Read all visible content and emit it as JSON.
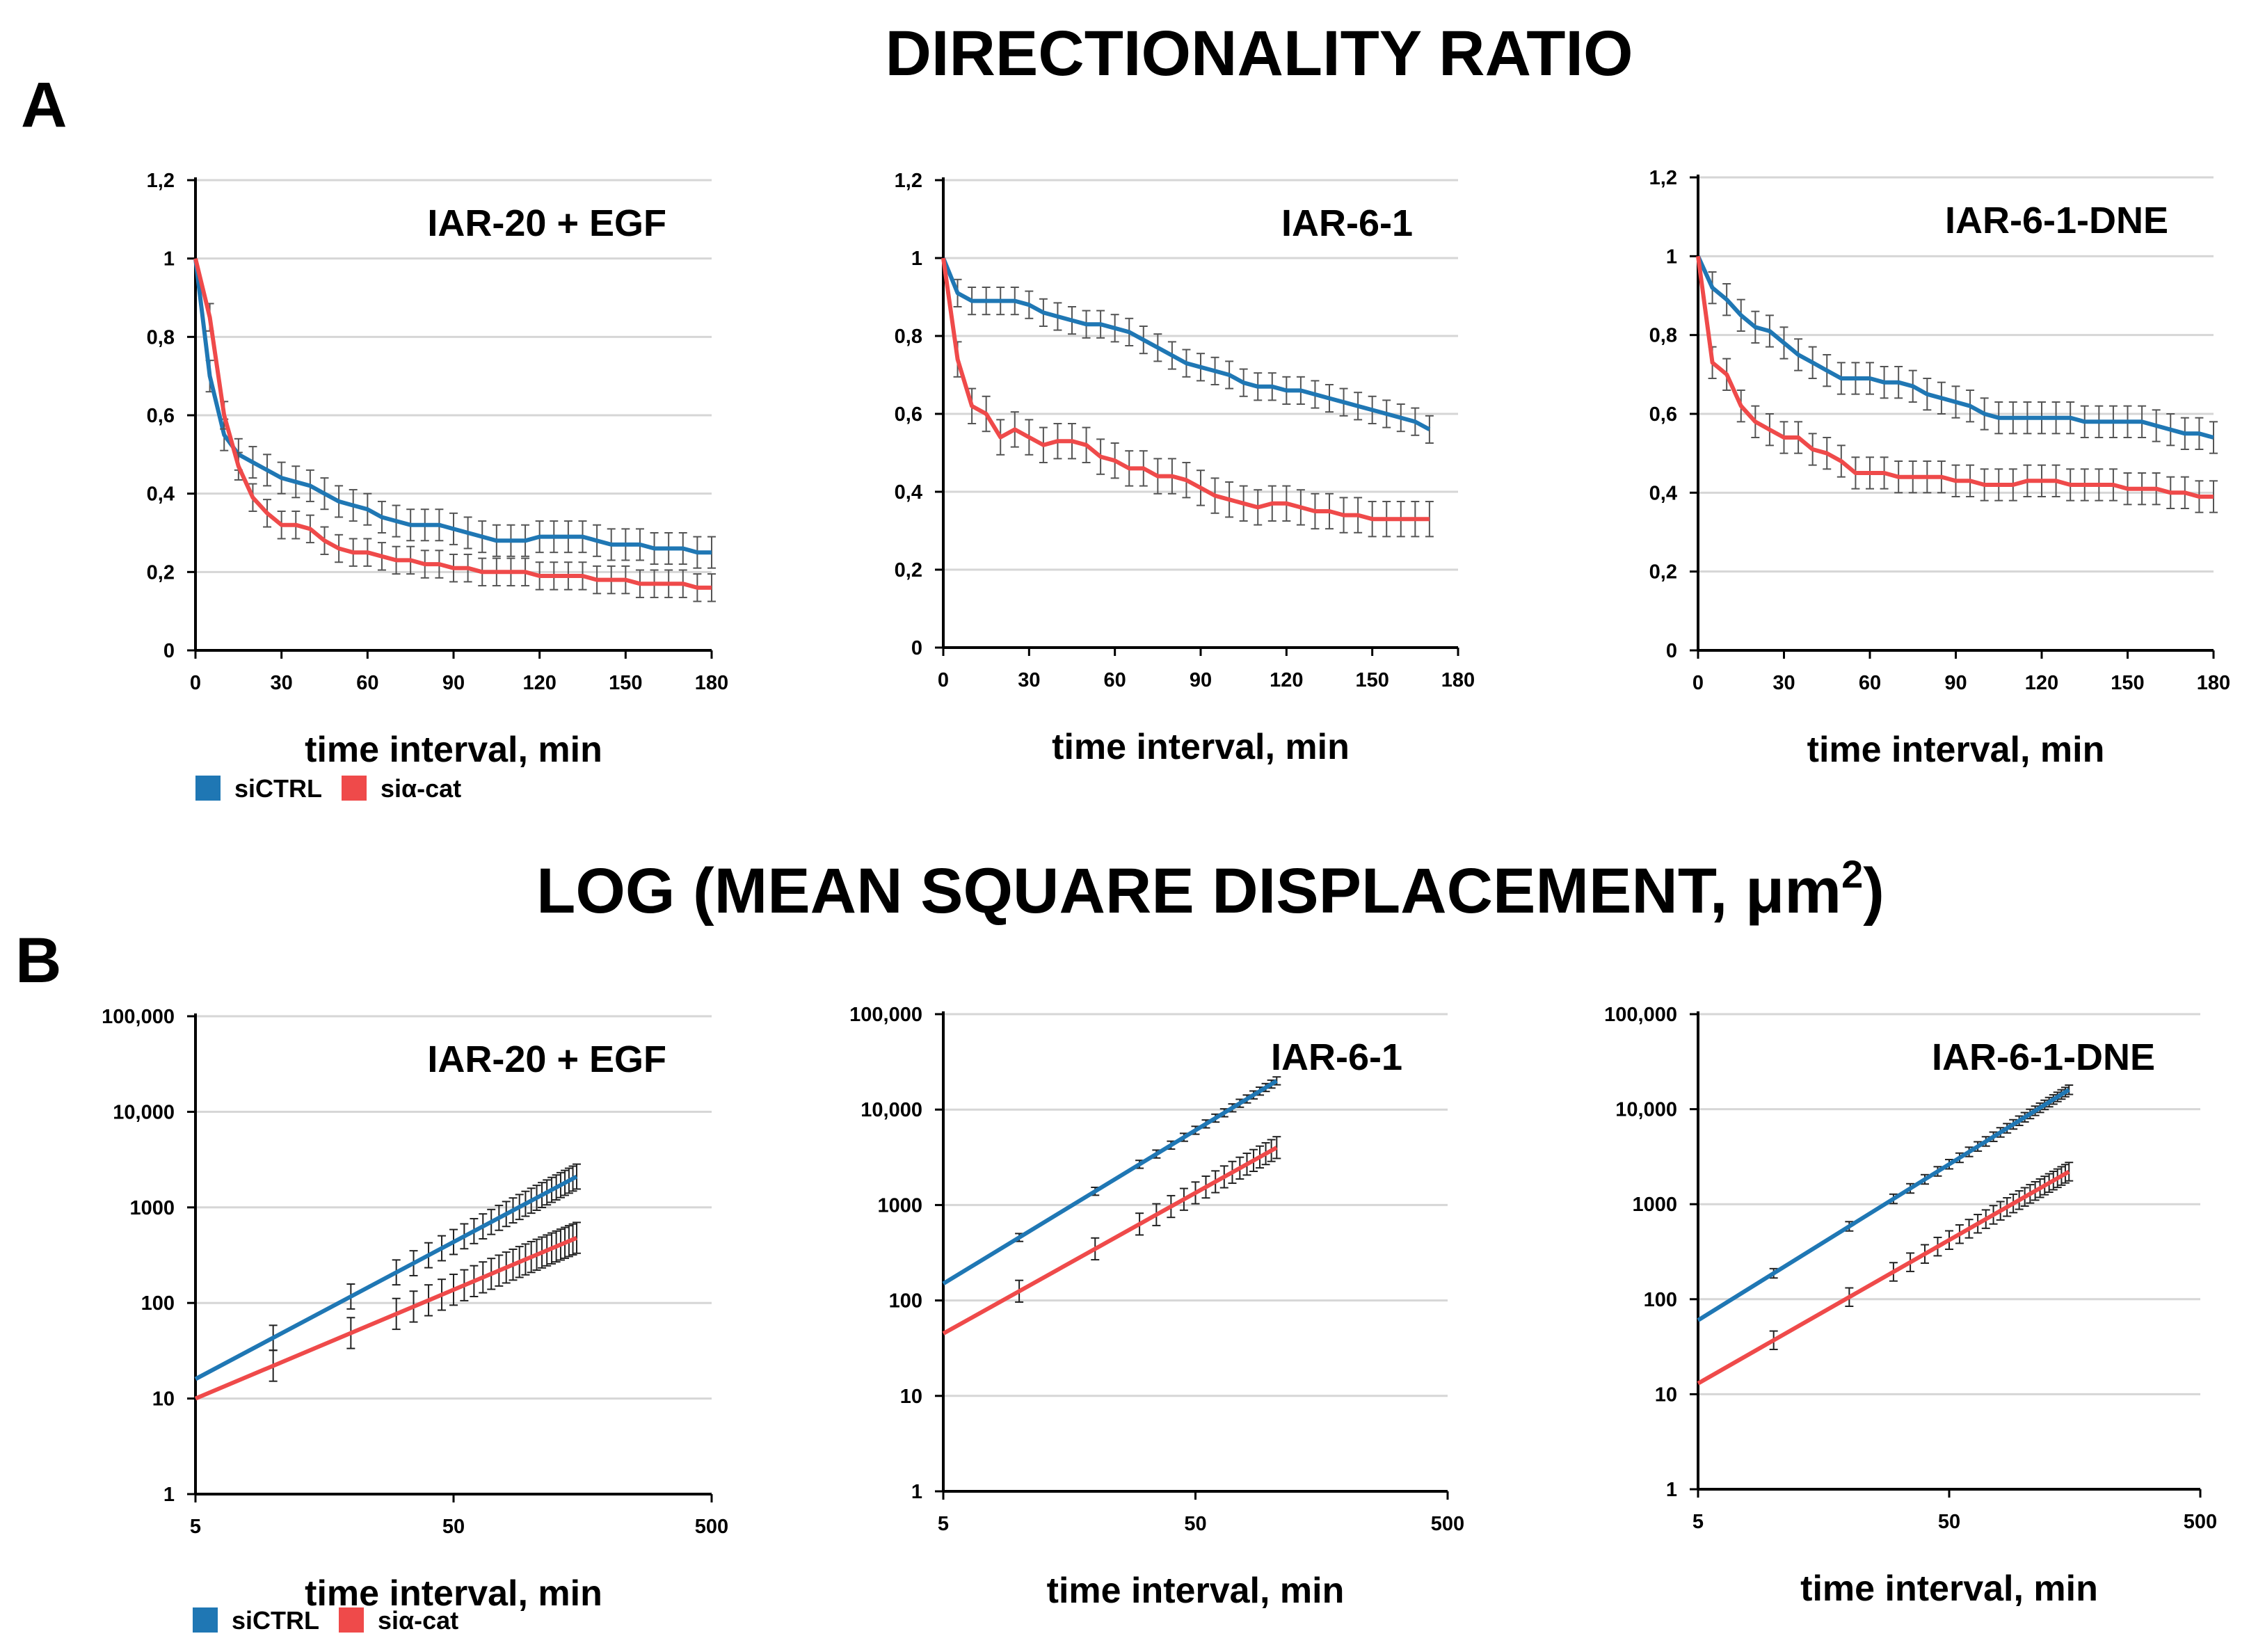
{
  "figure": {
    "title_a": "DIRECTIONALITY RATIO",
    "title_b_main": "LOG (MEAN SQUARE DISPLACEMENT, ",
    "title_b_unit": "μm",
    "title_b_sup": "2",
    "title_b_close": ")",
    "panel_a_letter": "A",
    "panel_b_letter": "B"
  },
  "colors": {
    "siCTRL": "#1f77b4",
    "sia_cat": "#ef4a4a",
    "errorbar": "#555555",
    "grid": "#d6d6d6"
  },
  "legend": [
    {
      "label": "siCTRL",
      "color": "#1f77b4"
    },
    {
      "label": "siα-cat",
      "color": "#ef4a4a"
    }
  ],
  "chart_data": [
    {
      "type": "line",
      "panel": "A",
      "title": "IAR-20 + EGF",
      "xlabel": "time interval, min",
      "ylabel": "",
      "xlim": [
        0,
        180
      ],
      "ylim": [
        0,
        1.2
      ],
      "xticks": [
        "0",
        "30",
        "60",
        "90",
        "120",
        "150",
        "180"
      ],
      "yticks": [
        "0",
        "0,2",
        "0,4",
        "0,6",
        "0,8",
        "1",
        "1,2"
      ],
      "series": [
        {
          "name": "siCTRL",
          "points": [
            [
              0,
              1
            ],
            [
              5,
              0.7
            ],
            [
              10,
              0.55
            ],
            [
              15,
              0.5
            ],
            [
              20,
              0.48
            ],
            [
              25,
              0.46
            ],
            [
              30,
              0.44
            ],
            [
              35,
              0.43
            ],
            [
              40,
              0.42
            ],
            [
              45,
              0.4
            ],
            [
              50,
              0.38
            ],
            [
              55,
              0.37
            ],
            [
              60,
              0.36
            ],
            [
              65,
              0.34
            ],
            [
              70,
              0.33
            ],
            [
              75,
              0.32
            ],
            [
              80,
              0.32
            ],
            [
              85,
              0.32
            ],
            [
              90,
              0.31
            ],
            [
              95,
              0.3
            ],
            [
              100,
              0.29
            ],
            [
              105,
              0.28
            ],
            [
              110,
              0.28
            ],
            [
              115,
              0.28
            ],
            [
              120,
              0.29
            ],
            [
              125,
              0.29
            ],
            [
              130,
              0.29
            ],
            [
              135,
              0.29
            ],
            [
              140,
              0.28
            ],
            [
              145,
              0.27
            ],
            [
              150,
              0.27
            ],
            [
              155,
              0.27
            ],
            [
              160,
              0.26
            ],
            [
              165,
              0.26
            ],
            [
              170,
              0.26
            ],
            [
              175,
              0.25
            ],
            [
              180,
              0.25
            ]
          ],
          "err": 0.04
        },
        {
          "name": "siα-cat",
          "points": [
            [
              0,
              1
            ],
            [
              5,
              0.85
            ],
            [
              10,
              0.6
            ],
            [
              15,
              0.47
            ],
            [
              20,
              0.39
            ],
            [
              25,
              0.35
            ],
            [
              30,
              0.32
            ],
            [
              35,
              0.32
            ],
            [
              40,
              0.31
            ],
            [
              45,
              0.28
            ],
            [
              50,
              0.26
            ],
            [
              55,
              0.25
            ],
            [
              60,
              0.25
            ],
            [
              65,
              0.24
            ],
            [
              70,
              0.23
            ],
            [
              75,
              0.23
            ],
            [
              80,
              0.22
            ],
            [
              85,
              0.22
            ],
            [
              90,
              0.21
            ],
            [
              95,
              0.21
            ],
            [
              100,
              0.2
            ],
            [
              105,
              0.2
            ],
            [
              110,
              0.2
            ],
            [
              115,
              0.2
            ],
            [
              120,
              0.19
            ],
            [
              125,
              0.19
            ],
            [
              130,
              0.19
            ],
            [
              135,
              0.19
            ],
            [
              140,
              0.18
            ],
            [
              145,
              0.18
            ],
            [
              150,
              0.18
            ],
            [
              155,
              0.17
            ],
            [
              160,
              0.17
            ],
            [
              165,
              0.17
            ],
            [
              170,
              0.17
            ],
            [
              175,
              0.16
            ],
            [
              180,
              0.16
            ]
          ],
          "err": 0.035
        }
      ]
    },
    {
      "type": "line",
      "panel": "A",
      "title": "IAR-6-1",
      "xlabel": "time interval, min",
      "ylabel": "",
      "xlim": [
        0,
        180
      ],
      "ylim": [
        0,
        1.2
      ],
      "xticks": [
        "0",
        "30",
        "60",
        "90",
        "120",
        "150",
        "180"
      ],
      "yticks": [
        "0",
        "0,2",
        "0,4",
        "0,6",
        "0,8",
        "1",
        "1,2"
      ],
      "series": [
        {
          "name": "siCTRL",
          "points": [
            [
              0,
              1
            ],
            [
              5,
              0.91
            ],
            [
              10,
              0.89
            ],
            [
              15,
              0.89
            ],
            [
              20,
              0.89
            ],
            [
              25,
              0.89
            ],
            [
              30,
              0.88
            ],
            [
              35,
              0.86
            ],
            [
              40,
              0.85
            ],
            [
              45,
              0.84
            ],
            [
              50,
              0.83
            ],
            [
              55,
              0.83
            ],
            [
              60,
              0.82
            ],
            [
              65,
              0.81
            ],
            [
              70,
              0.79
            ],
            [
              75,
              0.77
            ],
            [
              80,
              0.75
            ],
            [
              85,
              0.73
            ],
            [
              90,
              0.72
            ],
            [
              95,
              0.71
            ],
            [
              100,
              0.7
            ],
            [
              105,
              0.68
            ],
            [
              110,
              0.67
            ],
            [
              115,
              0.67
            ],
            [
              120,
              0.66
            ],
            [
              125,
              0.66
            ],
            [
              130,
              0.65
            ],
            [
              135,
              0.64
            ],
            [
              140,
              0.63
            ],
            [
              145,
              0.62
            ],
            [
              150,
              0.61
            ],
            [
              155,
              0.6
            ],
            [
              160,
              0.59
            ],
            [
              165,
              0.58
            ],
            [
              170,
              0.56
            ]
          ],
          "err": 0.035
        },
        {
          "name": "siα-cat",
          "points": [
            [
              0,
              1
            ],
            [
              5,
              0.74
            ],
            [
              10,
              0.62
            ],
            [
              15,
              0.6
            ],
            [
              20,
              0.54
            ],
            [
              25,
              0.56
            ],
            [
              30,
              0.54
            ],
            [
              35,
              0.52
            ],
            [
              40,
              0.53
            ],
            [
              45,
              0.53
            ],
            [
              50,
              0.52
            ],
            [
              55,
              0.49
            ],
            [
              60,
              0.48
            ],
            [
              65,
              0.46
            ],
            [
              70,
              0.46
            ],
            [
              75,
              0.44
            ],
            [
              80,
              0.44
            ],
            [
              85,
              0.43
            ],
            [
              90,
              0.41
            ],
            [
              95,
              0.39
            ],
            [
              100,
              0.38
            ],
            [
              105,
              0.37
            ],
            [
              110,
              0.36
            ],
            [
              115,
              0.37
            ],
            [
              120,
              0.37
            ],
            [
              125,
              0.36
            ],
            [
              130,
              0.35
            ],
            [
              135,
              0.35
            ],
            [
              140,
              0.34
            ],
            [
              145,
              0.34
            ],
            [
              150,
              0.33
            ],
            [
              155,
              0.33
            ],
            [
              160,
              0.33
            ],
            [
              165,
              0.33
            ],
            [
              170,
              0.33
            ]
          ],
          "err": 0.045
        }
      ]
    },
    {
      "type": "line",
      "panel": "A",
      "title": "IAR-6-1-DNE",
      "xlabel": "time interval, min",
      "ylabel": "",
      "xlim": [
        0,
        180
      ],
      "ylim": [
        0,
        1.2
      ],
      "xticks": [
        "0",
        "30",
        "60",
        "90",
        "120",
        "150",
        "180"
      ],
      "yticks": [
        "0",
        "0,2",
        "0,4",
        "0,6",
        "0,8",
        "1",
        "1,2"
      ],
      "series": [
        {
          "name": "siCTRL",
          "points": [
            [
              0,
              1
            ],
            [
              5,
              0.92
            ],
            [
              10,
              0.89
            ],
            [
              15,
              0.85
            ],
            [
              20,
              0.82
            ],
            [
              25,
              0.81
            ],
            [
              30,
              0.78
            ],
            [
              35,
              0.75
            ],
            [
              40,
              0.73
            ],
            [
              45,
              0.71
            ],
            [
              50,
              0.69
            ],
            [
              55,
              0.69
            ],
            [
              60,
              0.69
            ],
            [
              65,
              0.68
            ],
            [
              70,
              0.68
            ],
            [
              75,
              0.67
            ],
            [
              80,
              0.65
            ],
            [
              85,
              0.64
            ],
            [
              90,
              0.63
            ],
            [
              95,
              0.62
            ],
            [
              100,
              0.6
            ],
            [
              105,
              0.59
            ],
            [
              110,
              0.59
            ],
            [
              115,
              0.59
            ],
            [
              120,
              0.59
            ],
            [
              125,
              0.59
            ],
            [
              130,
              0.59
            ],
            [
              135,
              0.58
            ],
            [
              140,
              0.58
            ],
            [
              145,
              0.58
            ],
            [
              150,
              0.58
            ],
            [
              155,
              0.58
            ],
            [
              160,
              0.57
            ],
            [
              165,
              0.56
            ],
            [
              170,
              0.55
            ],
            [
              175,
              0.55
            ],
            [
              180,
              0.54
            ]
          ],
          "err": 0.04
        },
        {
          "name": "siα-cat",
          "points": [
            [
              0,
              1
            ],
            [
              5,
              0.73
            ],
            [
              10,
              0.7
            ],
            [
              15,
              0.62
            ],
            [
              20,
              0.58
            ],
            [
              25,
              0.56
            ],
            [
              30,
              0.54
            ],
            [
              35,
              0.54
            ],
            [
              40,
              0.51
            ],
            [
              45,
              0.5
            ],
            [
              50,
              0.48
            ],
            [
              55,
              0.45
            ],
            [
              60,
              0.45
            ],
            [
              65,
              0.45
            ],
            [
              70,
              0.44
            ],
            [
              75,
              0.44
            ],
            [
              80,
              0.44
            ],
            [
              85,
              0.44
            ],
            [
              90,
              0.43
            ],
            [
              95,
              0.43
            ],
            [
              100,
              0.42
            ],
            [
              105,
              0.42
            ],
            [
              110,
              0.42
            ],
            [
              115,
              0.43
            ],
            [
              120,
              0.43
            ],
            [
              125,
              0.43
            ],
            [
              130,
              0.42
            ],
            [
              135,
              0.42
            ],
            [
              140,
              0.42
            ],
            [
              145,
              0.42
            ],
            [
              150,
              0.41
            ],
            [
              155,
              0.41
            ],
            [
              160,
              0.41
            ],
            [
              165,
              0.4
            ],
            [
              170,
              0.4
            ],
            [
              175,
              0.39
            ],
            [
              180,
              0.39
            ]
          ],
          "err": 0.04
        }
      ]
    },
    {
      "type": "line",
      "panel": "B",
      "title": "IAR-20 + EGF",
      "scale": "log-log",
      "xlabel": "time interval, min",
      "ylabel": "",
      "xlim": [
        5,
        500
      ],
      "ylim": [
        1,
        100000
      ],
      "xticks": [
        "5",
        "50",
        "500"
      ],
      "yticks": [
        "1",
        "10",
        "100",
        "1000",
        "10,000",
        "100,000"
      ],
      "series": [
        {
          "name": "siCTRL",
          "x": [
            5,
            150
          ],
          "y": [
            16,
            2100
          ],
          "errfactor": 1.35
        },
        {
          "name": "siα-cat",
          "x": [
            5,
            150
          ],
          "y": [
            10,
            480
          ],
          "errfactor": 1.45
        }
      ]
    },
    {
      "type": "line",
      "panel": "B",
      "title": "IAR-6-1",
      "scale": "log-log",
      "xlabel": "time interval, min",
      "ylabel": "",
      "xlim": [
        5,
        500
      ],
      "ylim": [
        1,
        100000
      ],
      "xticks": [
        "5",
        "50",
        "500"
      ],
      "yticks": [
        "1",
        "10",
        "100",
        "1000",
        "10,000",
        "100,000"
      ],
      "series": [
        {
          "name": "siCTRL",
          "x": [
            5,
            105
          ],
          "y": [
            150,
            20000
          ],
          "errfactor": 1.1
        },
        {
          "name": "siα-cat",
          "x": [
            5,
            105
          ],
          "y": [
            45,
            4000
          ],
          "errfactor": 1.3
        }
      ]
    },
    {
      "type": "line",
      "panel": "B",
      "title": "IAR-6-1-DNE",
      "scale": "log-log",
      "xlabel": "time interval, min",
      "ylabel": "",
      "xlim": [
        5,
        500
      ],
      "ylim": [
        1,
        100000
      ],
      "xticks": [
        "5",
        "50",
        "500"
      ],
      "yticks": [
        "1",
        "10",
        "100",
        "1000",
        "10,000",
        "100,000"
      ],
      "series": [
        {
          "name": "siCTRL",
          "x": [
            5,
            150
          ],
          "y": [
            60,
            16000
          ],
          "errfactor": 1.12
        },
        {
          "name": "siα-cat",
          "x": [
            5,
            150
          ],
          "y": [
            13,
            2200
          ],
          "errfactor": 1.25
        }
      ]
    }
  ]
}
